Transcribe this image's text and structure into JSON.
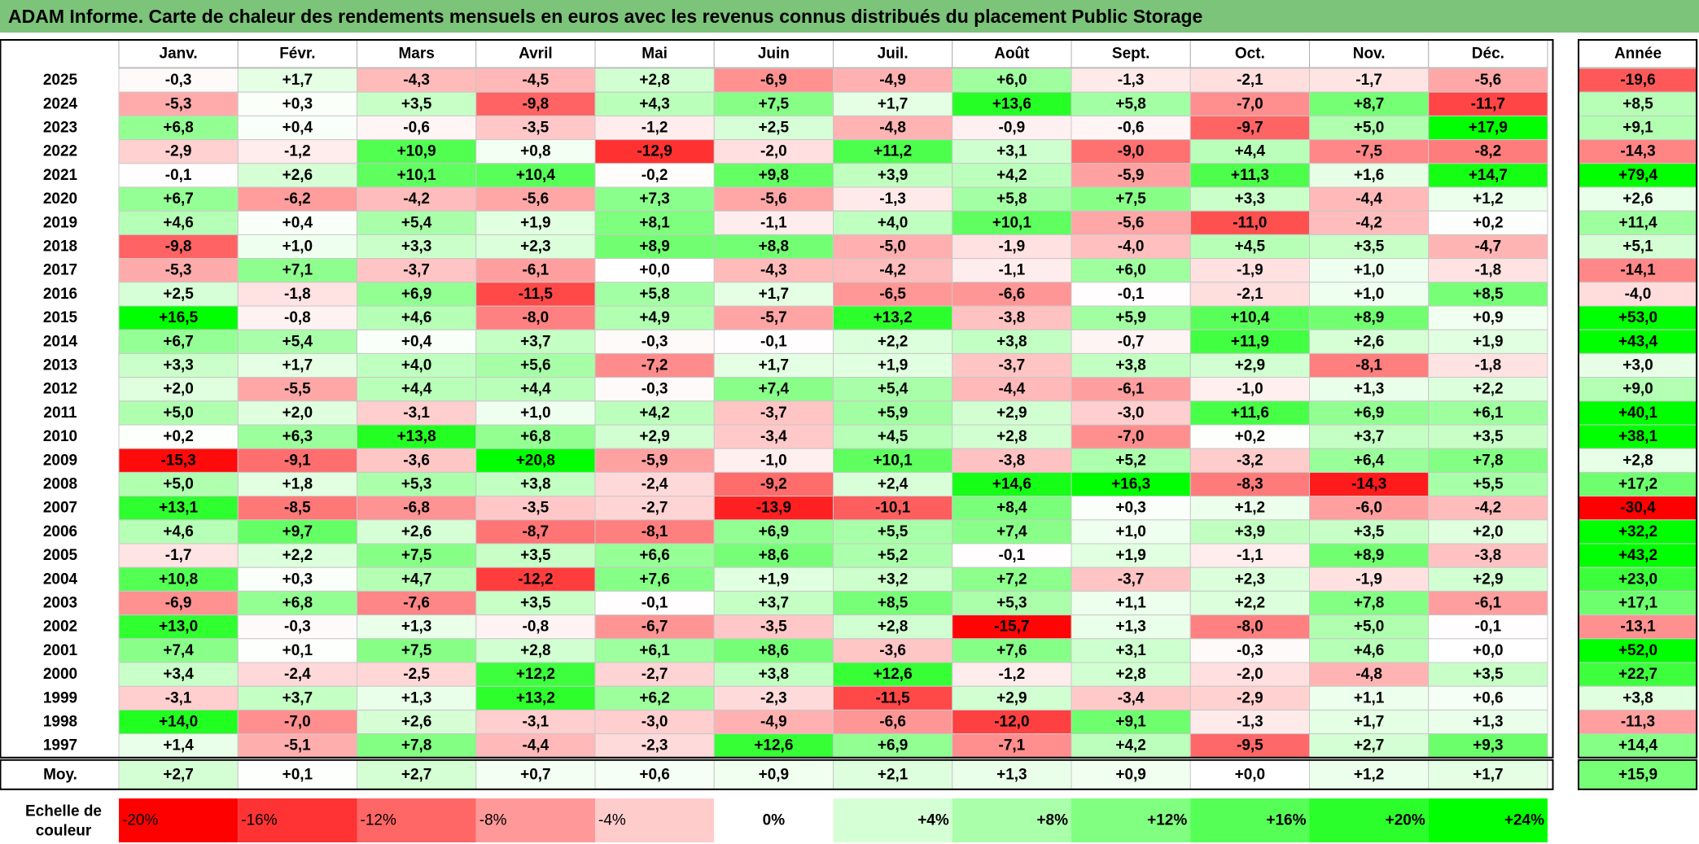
{
  "title": "ADAM Informe. Carte de chaleur des rendements mensuels en euros avec les revenus connus distribués du placement Public Storage",
  "chart_data": {
    "type": "heatmap",
    "title": "ADAM Informe. Carte de chaleur des rendements mensuels en euros avec les revenus connus distribués du placement Public Storage",
    "columns": [
      "Janv.",
      "Févr.",
      "Mars",
      "Avril",
      "Mai",
      "Juin",
      "Juil.",
      "Août",
      "Sept.",
      "Oct.",
      "Nov.",
      "Déc."
    ],
    "year_column_label": "Année",
    "rows": [
      {
        "year": "2025",
        "values": [
          "-0,3",
          "+1,7",
          "-4,3",
          "-4,5",
          "+2,8",
          "-6,9",
          "-4,9",
          "+6,0",
          "-1,3",
          "-2,1",
          "-1,7",
          "-5,6"
        ],
        "annual": "-19,6"
      },
      {
        "year": "2024",
        "values": [
          "-5,3",
          "+0,3",
          "+3,5",
          "-9,8",
          "+4,3",
          "+7,5",
          "+1,7",
          "+13,6",
          "+5,8",
          "-7,0",
          "+8,7",
          "-11,7"
        ],
        "annual": "+8,5"
      },
      {
        "year": "2023",
        "values": [
          "+6,8",
          "+0,4",
          "-0,6",
          "-3,5",
          "-1,2",
          "+2,5",
          "-4,8",
          "-0,9",
          "-0,6",
          "-9,7",
          "+5,0",
          "+17,9"
        ],
        "annual": "+9,1"
      },
      {
        "year": "2022",
        "values": [
          "-2,9",
          "-1,2",
          "+10,9",
          "+0,8",
          "-12,9",
          "-2,0",
          "+11,2",
          "+3,1",
          "-9,0",
          "+4,4",
          "-7,5",
          "-8,2"
        ],
        "annual": "-14,3"
      },
      {
        "year": "2021",
        "values": [
          "-0,1",
          "+2,6",
          "+10,1",
          "+10,4",
          "-0,2",
          "+9,8",
          "+3,9",
          "+4,2",
          "-5,9",
          "+11,3",
          "+1,6",
          "+14,7"
        ],
        "annual": "+79,4"
      },
      {
        "year": "2020",
        "values": [
          "+6,7",
          "-6,2",
          "-4,2",
          "-5,6",
          "+7,3",
          "-5,6",
          "-1,3",
          "+5,8",
          "+7,5",
          "+3,3",
          "-4,4",
          "+1,2"
        ],
        "annual": "+2,6"
      },
      {
        "year": "2019",
        "values": [
          "+4,6",
          "+0,4",
          "+5,4",
          "+1,9",
          "+8,1",
          "-1,1",
          "+4,0",
          "+10,1",
          "-5,6",
          "-11,0",
          "-4,2",
          "+0,2"
        ],
        "annual": "+11,4"
      },
      {
        "year": "2018",
        "values": [
          "-9,8",
          "+1,0",
          "+3,3",
          "+2,3",
          "+8,9",
          "+8,8",
          "-5,0",
          "-1,9",
          "-4,0",
          "+4,5",
          "+3,5",
          "-4,7"
        ],
        "annual": "+5,1"
      },
      {
        "year": "2017",
        "values": [
          "-5,3",
          "+7,1",
          "-3,7",
          "-6,1",
          "+0,0",
          "-4,3",
          "-4,2",
          "-1,1",
          "+6,0",
          "-1,9",
          "+1,0",
          "-1,8"
        ],
        "annual": "-14,1"
      },
      {
        "year": "2016",
        "values": [
          "+2,5",
          "-1,8",
          "+6,9",
          "-11,5",
          "+5,8",
          "+1,7",
          "-6,5",
          "-6,6",
          "-0,1",
          "-2,1",
          "+1,0",
          "+8,5"
        ],
        "annual": "-4,0"
      },
      {
        "year": "2015",
        "values": [
          "+16,5",
          "-0,8",
          "+4,6",
          "-8,0",
          "+4,9",
          "-5,7",
          "+13,2",
          "-3,8",
          "+5,9",
          "+10,4",
          "+8,9",
          "+0,9"
        ],
        "annual": "+53,0"
      },
      {
        "year": "2014",
        "values": [
          "+6,7",
          "+5,4",
          "+0,4",
          "+3,7",
          "-0,3",
          "-0,1",
          "+2,2",
          "+3,8",
          "-0,7",
          "+11,9",
          "+2,6",
          "+1,9"
        ],
        "annual": "+43,4"
      },
      {
        "year": "2013",
        "values": [
          "+3,3",
          "+1,7",
          "+4,0",
          "+5,6",
          "-7,2",
          "+1,7",
          "+1,9",
          "-3,7",
          "+3,8",
          "+2,9",
          "-8,1",
          "-1,8"
        ],
        "annual": "+3,0"
      },
      {
        "year": "2012",
        "values": [
          "+2,0",
          "-5,5",
          "+4,4",
          "+4,4",
          "-0,3",
          "+7,4",
          "+5,4",
          "-4,4",
          "-6,1",
          "-1,0",
          "+1,3",
          "+2,2"
        ],
        "annual": "+9,0"
      },
      {
        "year": "2011",
        "values": [
          "+5,0",
          "+2,0",
          "-3,1",
          "+1,0",
          "+4,2",
          "-3,7",
          "+5,9",
          "+2,9",
          "-3,0",
          "+11,6",
          "+6,9",
          "+6,1"
        ],
        "annual": "+40,1"
      },
      {
        "year": "2010",
        "values": [
          "+0,2",
          "+6,3",
          "+13,8",
          "+6,8",
          "+2,9",
          "-3,4",
          "+4,5",
          "+2,8",
          "-7,0",
          "+0,2",
          "+3,7",
          "+3,5"
        ],
        "annual": "+38,1"
      },
      {
        "year": "2009",
        "values": [
          "-15,3",
          "-9,1",
          "-3,6",
          "+20,8",
          "-5,9",
          "-1,0",
          "+10,1",
          "-3,8",
          "+5,2",
          "-3,2",
          "+6,4",
          "+7,8"
        ],
        "annual": "+2,8"
      },
      {
        "year": "2008",
        "values": [
          "+5,0",
          "+1,8",
          "+5,3",
          "+3,8",
          "-2,4",
          "-9,2",
          "+2,4",
          "+14,6",
          "+16,3",
          "-8,3",
          "-14,3",
          "+5,5"
        ],
        "annual": "+17,2"
      },
      {
        "year": "2007",
        "values": [
          "+13,1",
          "-8,5",
          "-6,8",
          "-3,5",
          "-2,7",
          "-13,9",
          "-10,1",
          "+8,4",
          "+0,3",
          "+1,2",
          "-6,0",
          "-4,2"
        ],
        "annual": "-30,4"
      },
      {
        "year": "2006",
        "values": [
          "+4,6",
          "+9,7",
          "+2,6",
          "-8,7",
          "-8,1",
          "+6,9",
          "+5,5",
          "+7,4",
          "+1,0",
          "+3,9",
          "+3,5",
          "+2,0"
        ],
        "annual": "+32,2"
      },
      {
        "year": "2005",
        "values": [
          "-1,7",
          "+2,2",
          "+7,5",
          "+3,5",
          "+6,6",
          "+8,6",
          "+5,2",
          "-0,1",
          "+1,9",
          "-1,1",
          "+8,9",
          "-3,8"
        ],
        "annual": "+43,2"
      },
      {
        "year": "2004",
        "values": [
          "+10,8",
          "+0,3",
          "+4,7",
          "-12,2",
          "+7,6",
          "+1,9",
          "+3,2",
          "+7,2",
          "-3,7",
          "+2,3",
          "-1,9",
          "+2,9"
        ],
        "annual": "+23,0"
      },
      {
        "year": "2003",
        "values": [
          "-6,9",
          "+6,8",
          "-7,6",
          "+3,5",
          "-0,1",
          "+3,7",
          "+8,5",
          "+5,3",
          "+1,1",
          "+2,2",
          "+7,8",
          "-6,1"
        ],
        "annual": "+17,1"
      },
      {
        "year": "2002",
        "values": [
          "+13,0",
          "-0,3",
          "+1,3",
          "-0,8",
          "-6,7",
          "-3,5",
          "+2,8",
          "-15,7",
          "+1,3",
          "-8,0",
          "+5,0",
          "-0,1"
        ],
        "annual": "-13,1"
      },
      {
        "year": "2001",
        "values": [
          "+7,4",
          "+0,1",
          "+7,5",
          "+2,8",
          "+6,1",
          "+8,6",
          "-3,6",
          "+7,6",
          "+3,1",
          "-0,3",
          "+4,6",
          "+0,0"
        ],
        "annual": "+52,0"
      },
      {
        "year": "2000",
        "values": [
          "+3,4",
          "-2,4",
          "-2,5",
          "+12,2",
          "-2,7",
          "+3,8",
          "+12,6",
          "-1,2",
          "+2,8",
          "-2,0",
          "-4,8",
          "+3,5"
        ],
        "annual": "+22,7"
      },
      {
        "year": "1999",
        "values": [
          "-3,1",
          "+3,7",
          "+1,3",
          "+13,2",
          "+6,2",
          "-2,3",
          "-11,5",
          "+2,9",
          "-3,4",
          "-2,9",
          "+1,1",
          "+0,6"
        ],
        "annual": "+3,8"
      },
      {
        "year": "1998",
        "values": [
          "+14,0",
          "-7,0",
          "+2,6",
          "-3,1",
          "-3,0",
          "-4,9",
          "-6,6",
          "-12,0",
          "+9,1",
          "-1,3",
          "+1,7",
          "+1,3"
        ],
        "annual": "-11,3"
      },
      {
        "year": "1997",
        "values": [
          "+1,4",
          "-5,1",
          "+7,8",
          "-4,4",
          "-2,3",
          "+12,6",
          "+6,9",
          "-7,1",
          "+4,2",
          "-9,5",
          "+2,7",
          "+9,3"
        ],
        "annual": "+14,4"
      }
    ],
    "average": {
      "label": "Moy.",
      "values": [
        "+2,7",
        "+0,1",
        "+2,7",
        "+0,7",
        "+0,6",
        "+0,9",
        "+2,1",
        "+1,3",
        "+0,9",
        "+0,0",
        "+1,2",
        "+1,7"
      ],
      "annual": "+15,9"
    },
    "scale": {
      "label_line1": "Echelle de",
      "label_line2": "couleur",
      "steps": [
        {
          "label": "-20%",
          "color": "#ff0000"
        },
        {
          "label": "-16%",
          "color": "#ff3333"
        },
        {
          "label": "-12%",
          "color": "#ff6666"
        },
        {
          "label": "-8%",
          "color": "#ff9999"
        },
        {
          "label": "-4%",
          "color": "#ffcccc"
        },
        {
          "label": "0%",
          "color": "#ffffff"
        },
        {
          "label": "+4%",
          "color": "#d5ffd5"
        },
        {
          "label": "+8%",
          "color": "#aaffaa"
        },
        {
          "label": "+12%",
          "color": "#80ff80"
        },
        {
          "label": "+16%",
          "color": "#55ff55"
        },
        {
          "label": "+20%",
          "color": "#2bff2b"
        },
        {
          "label": "+24%",
          "color": "#00ff00"
        }
      ]
    },
    "colors": {
      "negative_max": "#ff0000",
      "neutral": "#ffffff",
      "positive_max": "#00ff00",
      "title_bar": "#7cc47a"
    }
  }
}
